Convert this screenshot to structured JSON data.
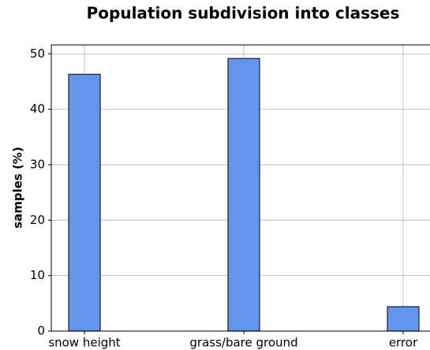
{
  "chart_data": {
    "type": "bar",
    "title": "Population subdivision into classes",
    "y_label": "samples (%)",
    "categories": [
      "snow height",
      "grass/bare ground",
      "error"
    ],
    "values": [
      46.3,
      49.15,
      4.4
    ],
    "color": "#6495ed",
    "edge_color": "#1a1a2e",
    "ylim": [
      0,
      51.6
    ],
    "yticks": [
      0,
      10,
      20,
      30,
      40,
      50
    ],
    "grid": true
  }
}
